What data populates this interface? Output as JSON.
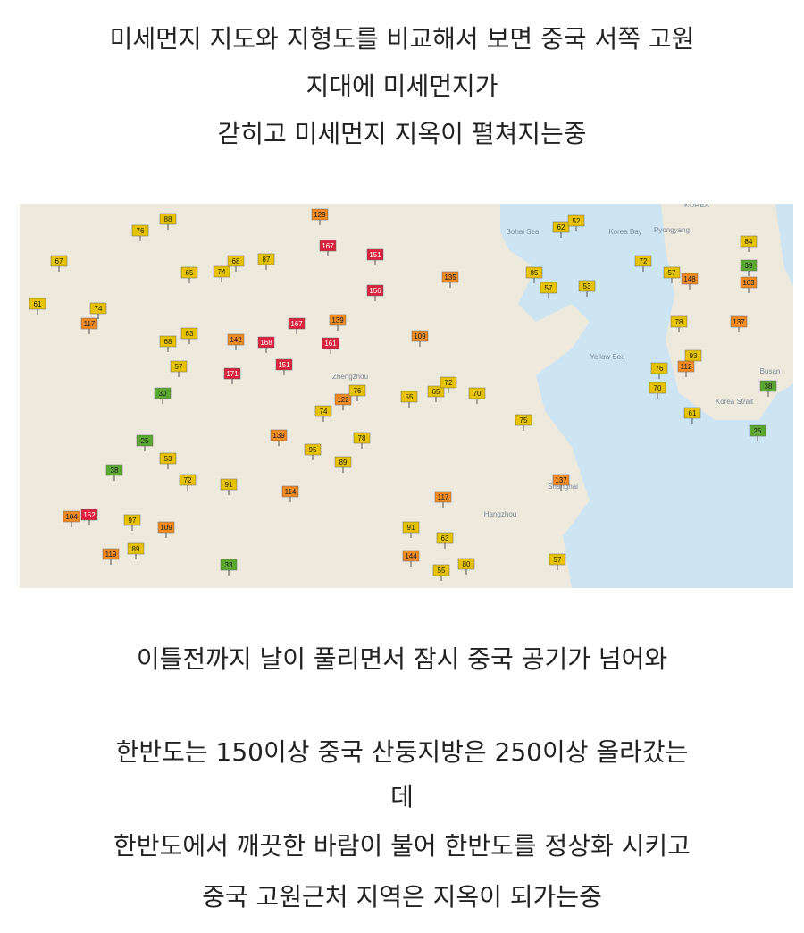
{
  "post": {
    "intro_lines": [
      "미세먼지 지도와 지형도를 비교해서 보면 중국 서쪽 고원",
      "지대에 미세먼지가",
      "갇히고 미세먼지 지옥이 펼쳐지는중"
    ],
    "middle_line": "이틀전까지 날이 풀리면서 잠시 중국 공기가 넘어와",
    "closing_lines": [
      "한반도는 150이상 중국 산둥지방은 250이상 올라갔는",
      "데",
      "한반도에서 깨끗한 바람이 불어 한반도를 정상화 시키고",
      "중국 고원근처 지역은 지옥이 되가는중"
    ]
  },
  "map": {
    "place_labels": [
      "KOREA",
      "Pyongyang",
      "Bohai Sea",
      "Korea Bay",
      "Yellow Sea",
      "Zhengzhou",
      "Shanghai",
      "Hangzhou",
      "Busan",
      "Korea Strait"
    ],
    "markers": [
      88,
      76,
      67,
      65,
      74,
      68,
      87,
      129,
      167,
      151,
      156,
      167,
      139,
      142,
      168,
      171,
      151,
      161,
      117,
      74,
      61,
      68,
      63,
      57,
      30,
      25,
      38,
      104,
      152,
      119,
      97,
      109,
      89,
      33,
      53,
      72,
      91,
      114,
      139,
      95,
      74,
      122,
      55,
      76,
      78,
      89,
      117,
      91,
      144,
      55,
      80,
      63,
      57,
      137,
      75,
      65,
      70,
      72,
      109,
      135,
      85,
      57,
      53,
      62,
      52,
      148,
      137,
      57,
      61,
      76,
      70,
      93,
      112,
      38,
      25,
      72,
      39,
      103,
      84,
      78
    ]
  }
}
